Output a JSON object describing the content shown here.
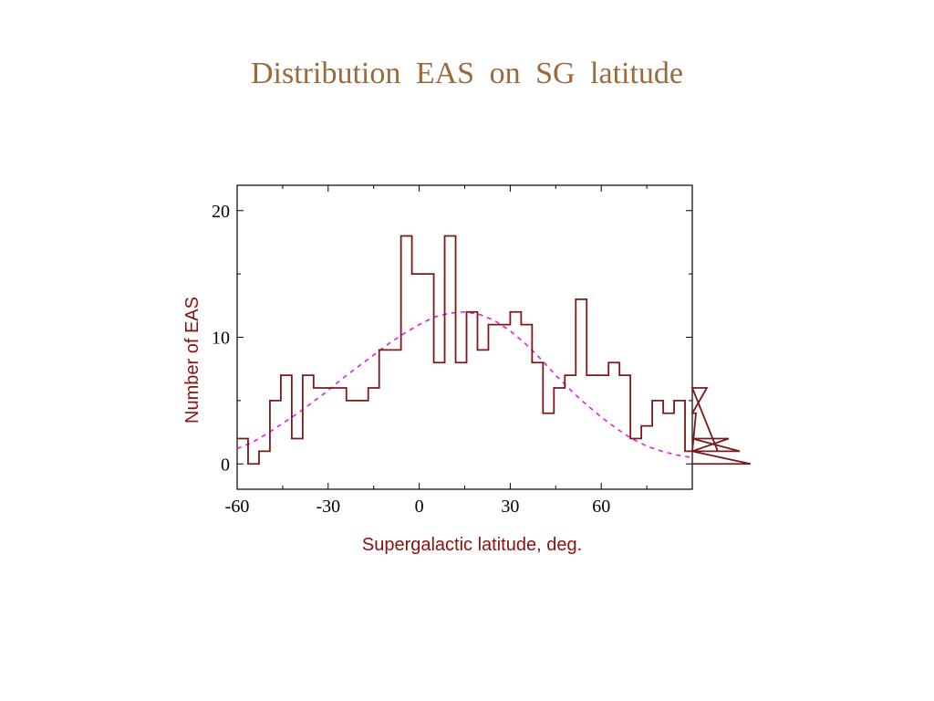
{
  "slide": {
    "title": "Distribution  EAS  on  SG  latitude"
  },
  "colors": {
    "title": "#9b6a3c",
    "histogram": "#7a1a1a",
    "fit": "#e020e0",
    "axis_label": "#8b1010",
    "frame": "#000000"
  },
  "chart_data": {
    "type": "histogram",
    "xlabel": "Supergalactic latitude, deg.",
    "ylabel": "Number  of  EAS",
    "xlim": [
      -60,
      90
    ],
    "ylim": [
      -2,
      22
    ],
    "x_ticks": [
      -60,
      -30,
      0,
      30,
      60
    ],
    "y_ticks": [
      0,
      10,
      20
    ],
    "bin_width": 3.6,
    "bin_edges_start": -60,
    "series": [
      {
        "kind": "histogram",
        "values": [
          2,
          0,
          1,
          5,
          7,
          2,
          7,
          6,
          6,
          6,
          5,
          5,
          6,
          9,
          9,
          18,
          15,
          15,
          8,
          18,
          8,
          12,
          9,
          11,
          11,
          12,
          11,
          8,
          4,
          6,
          7,
          13,
          7,
          7,
          8,
          7,
          2,
          3,
          5,
          4,
          5,
          1,
          4,
          6,
          1,
          2,
          1,
          0
        ]
      },
      {
        "kind": "fit",
        "style": "dashed",
        "x": [
          -60,
          -55,
          -50,
          -45,
          -40,
          -35,
          -30,
          -25,
          -20,
          -15,
          -10,
          -5,
          0,
          5,
          10,
          15,
          20,
          25,
          30,
          35,
          40,
          45,
          50,
          55,
          60,
          65,
          70,
          75,
          80,
          85,
          90
        ],
        "y": [
          1.2,
          1.7,
          2.4,
          3.2,
          4.0,
          4.9,
          5.8,
          6.8,
          7.7,
          8.6,
          9.5,
          10.3,
          11.0,
          11.6,
          11.9,
          12.0,
          11.8,
          11.3,
          10.5,
          9.5,
          8.3,
          7.0,
          5.8,
          4.7,
          3.7,
          2.8,
          2.0,
          1.4,
          1.0,
          0.7,
          0.5
        ]
      }
    ]
  }
}
